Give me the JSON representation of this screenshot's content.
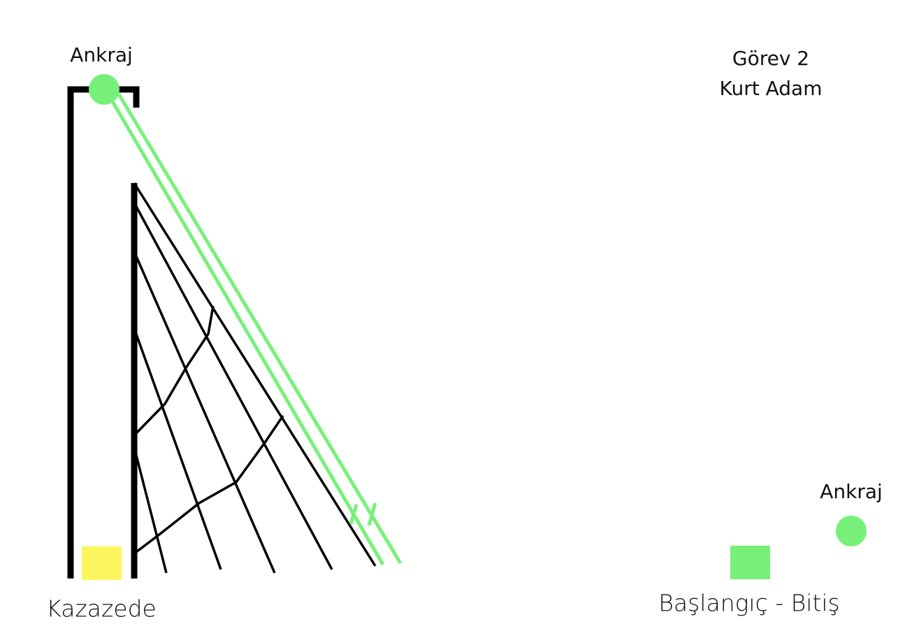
{
  "anchor_top": {
    "label": "Ankraj"
  },
  "title": {
    "lines": [
      "Görev 2",
      "Kurt Adam"
    ]
  },
  "anchor_right": {
    "label": "Ankraj"
  },
  "victim": {
    "label": "Kazazede"
  },
  "start_end": {
    "label": "Başlangıç - Bitiş"
  }
}
